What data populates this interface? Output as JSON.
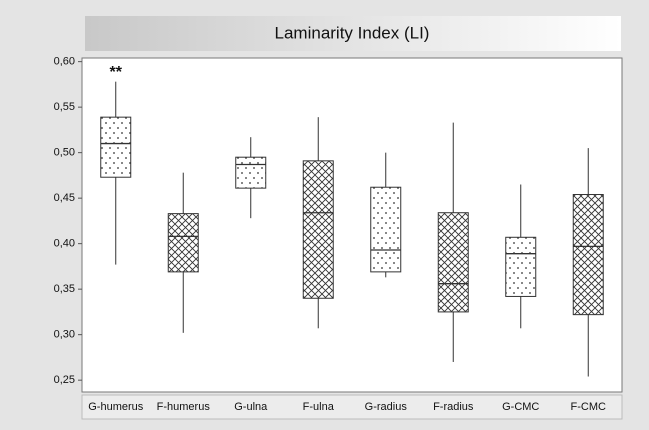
{
  "chart_data": {
    "type": "box",
    "title": "Laminarity Index (LI)",
    "annotation": "**",
    "categories": [
      "G-humerus",
      "F-humerus",
      "G-ulna",
      "F-ulna",
      "G-radius",
      "F-radius",
      "G-CMC",
      "F-CMC"
    ],
    "whisker_low": [
      0.377,
      0.302,
      0.428,
      0.307,
      0.363,
      0.27,
      0.307,
      0.254
    ],
    "q1": [
      0.473,
      0.369,
      0.461,
      0.34,
      0.369,
      0.325,
      0.342,
      0.322
    ],
    "median": [
      0.51,
      0.408,
      0.487,
      0.434,
      0.393,
      0.356,
      0.389,
      0.397
    ],
    "q3": [
      0.539,
      0.433,
      0.495,
      0.491,
      0.462,
      0.434,
      0.407,
      0.454
    ],
    "whisker_high": [
      0.578,
      0.478,
      0.517,
      0.539,
      0.5,
      0.533,
      0.465,
      0.505
    ],
    "patterns": [
      "dots",
      "crosshatch",
      "dots",
      "crosshatch",
      "dots",
      "crosshatch",
      "dots",
      "crosshatch"
    ],
    "color": "#333333",
    "ylim": [
      0.237,
      0.604
    ],
    "yticks": [
      {
        "value": 0.25,
        "label": "0,25"
      },
      {
        "value": 0.3,
        "label": "0,30"
      },
      {
        "value": 0.35,
        "label": "0,35"
      },
      {
        "value": 0.4,
        "label": "0,40"
      },
      {
        "value": 0.45,
        "label": "0,45"
      },
      {
        "value": 0.5,
        "label": "0,50"
      },
      {
        "value": 0.55,
        "label": "0,55"
      },
      {
        "value": 0.6,
        "label": "0,60"
      }
    ]
  }
}
